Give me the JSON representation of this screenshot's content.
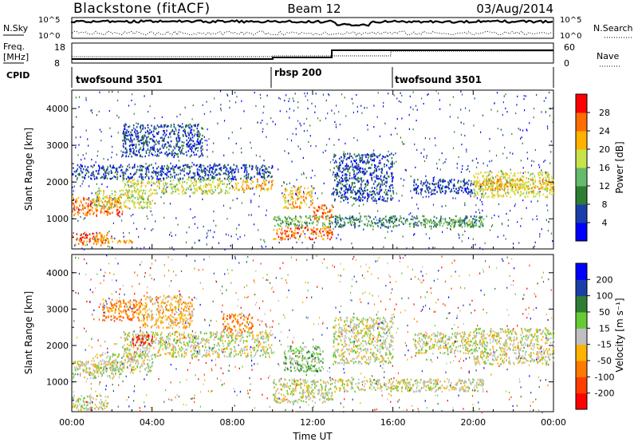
{
  "header": {
    "station": "Blackstone (fitACF)",
    "beam": "Beam 12",
    "date": "03/Aug/2014"
  },
  "top_panels": {
    "nsky_label": "N.Sky",
    "nsky_ticks": [
      "10^5",
      "10^0"
    ],
    "nsearch_label": "N.Search",
    "nsearch_ticks": [
      "10^5",
      "10^0"
    ],
    "freq_label": "Freq.",
    "freq_unit": "[MHz]",
    "freq_ticks": [
      "18",
      "8"
    ],
    "nave_label": "Nave",
    "nave_ticks": [
      "60",
      "0"
    ],
    "cpid_label": "CPID",
    "cpid_segments": [
      {
        "name": "twofsound 3501",
        "start_h": 0,
        "end_h": 10
      },
      {
        "name": "rbsp 200",
        "start_h": 10,
        "end_h": 16
      },
      {
        "name": "twofsound 3501",
        "start_h": 16,
        "end_h": 24
      }
    ]
  },
  "chart_data": [
    {
      "type": "heatmap",
      "panel": "power",
      "ylabel": "Slant Range [km]",
      "colorbar_label": "Power [dB]",
      "colorbar_ticks": [
        "28",
        "24",
        "20",
        "16",
        "12",
        "8",
        "4"
      ],
      "colors": [
        "#0000ff",
        "#1a3fa8",
        "#2e7d32",
        "#66bb6a",
        "#c8e34a",
        "#ffb300",
        "#ff6d00",
        "#ff0000"
      ],
      "x_ticks": [
        "00:00",
        "04:00",
        "08:00",
        "12:00",
        "16:00",
        "20:00",
        "00:00"
      ],
      "y_ticks": [
        "1000",
        "2000",
        "3000",
        "4000"
      ],
      "xlim": [
        0,
        24
      ],
      "ylim": [
        180,
        4500
      ],
      "bands": [
        {
          "t0": 0,
          "t1": 1.8,
          "r0": 300,
          "r1": 650,
          "level": 6
        },
        {
          "t0": 1.0,
          "t1": 3.0,
          "r0": 350,
          "r1": 500,
          "level": 5
        },
        {
          "t0": 0,
          "t1": 2.5,
          "r0": 1100,
          "r1": 1600,
          "level": 6
        },
        {
          "t0": 1.0,
          "t1": 4.0,
          "r0": 1300,
          "r1": 1800,
          "level": 4
        },
        {
          "t0": 2.5,
          "t1": 8.0,
          "r0": 1700,
          "r1": 2100,
          "level": 4
        },
        {
          "t0": 8.0,
          "t1": 10.0,
          "r0": 1800,
          "r1": 2100,
          "level": 5
        },
        {
          "t0": 0,
          "t1": 10.0,
          "r0": 2100,
          "r1": 2500,
          "level": 1
        },
        {
          "t0": 2.5,
          "t1": 6.5,
          "r0": 2700,
          "r1": 3600,
          "level": 1
        },
        {
          "t0": 10.5,
          "t1": 12.0,
          "r0": 1300,
          "r1": 1900,
          "level": 5
        },
        {
          "t0": 12.0,
          "t1": 13.0,
          "r0": 1000,
          "r1": 1400,
          "level": 6
        },
        {
          "t0": 10.0,
          "t1": 13.0,
          "r0": 450,
          "r1": 800,
          "level": 6
        },
        {
          "t0": 10.0,
          "t1": 13.0,
          "r0": 800,
          "r1": 1100,
          "level": 3
        },
        {
          "t0": 13.0,
          "t1": 16.0,
          "r0": 1500,
          "r1": 2800,
          "level": 1
        },
        {
          "t0": 13.0,
          "t1": 20.5,
          "r0": 800,
          "r1": 1100,
          "level": 2
        },
        {
          "t0": 17.5,
          "t1": 20.5,
          "r0": 800,
          "r1": 1000,
          "level": 3
        },
        {
          "t0": 20.0,
          "t1": 24.0,
          "r0": 1600,
          "r1": 2300,
          "level": 4
        },
        {
          "t0": 20.0,
          "t1": 24.0,
          "r0": 1800,
          "r1": 2100,
          "level": 5
        },
        {
          "t0": 17.0,
          "t1": 20.0,
          "r0": 1700,
          "r1": 2100,
          "level": 1
        }
      ]
    },
    {
      "type": "heatmap",
      "panel": "velocity",
      "ylabel": "Slant Range [km]",
      "xlabel": "Time UT",
      "colorbar_label": "Velocity [m s⁻¹]",
      "colorbar_ticks": [
        "200",
        "100",
        "50",
        "15",
        "-15",
        "-50",
        "-100",
        "-200"
      ],
      "colors": [
        "#0000ff",
        "#1a3fa8",
        "#2e7d32",
        "#66cc33",
        "#c0c0c0",
        "#ffb300",
        "#ff7a00",
        "#ff3d00",
        "#ff0000"
      ],
      "x_ticks": [
        "00:00",
        "04:00",
        "08:00",
        "12:00",
        "16:00",
        "20:00",
        "00:00"
      ],
      "y_ticks": [
        "1000",
        "2000",
        "3000",
        "4000"
      ],
      "xlim": [
        0,
        24
      ],
      "ylim": [
        180,
        4500
      ],
      "bands": [
        {
          "t0": 0,
          "t1": 1.8,
          "r0": 250,
          "r1": 650,
          "level": 4
        },
        {
          "t0": 0,
          "t1": 2.5,
          "r0": 1100,
          "r1": 1600,
          "level": 4
        },
        {
          "t0": 1.0,
          "t1": 4.0,
          "r0": 1300,
          "r1": 1800,
          "level": 4
        },
        {
          "t0": 2.5,
          "t1": 10.0,
          "r0": 1700,
          "r1": 2400,
          "level": 4
        },
        {
          "t0": 1.5,
          "t1": 3.5,
          "r0": 2700,
          "r1": 3300,
          "level": 6
        },
        {
          "t0": 3.5,
          "t1": 6.0,
          "r0": 2500,
          "r1": 3400,
          "level": 5
        },
        {
          "t0": 7.5,
          "t1": 9.0,
          "r0": 2400,
          "r1": 2900,
          "level": 6
        },
        {
          "t0": 3.0,
          "t1": 4.0,
          "r0": 2000,
          "r1": 2300,
          "level": 8
        },
        {
          "t0": 10.5,
          "t1": 12.5,
          "r0": 1300,
          "r1": 2000,
          "level": 3
        },
        {
          "t0": 10.0,
          "t1": 13.0,
          "r0": 450,
          "r1": 1100,
          "level": 4
        },
        {
          "t0": 13.0,
          "t1": 16.0,
          "r0": 1500,
          "r1": 2800,
          "level": 4
        },
        {
          "t0": 13.0,
          "t1": 20.5,
          "r0": 750,
          "r1": 1100,
          "level": 4
        },
        {
          "t0": 20.0,
          "t1": 24.0,
          "r0": 1500,
          "r1": 2500,
          "level": 4
        },
        {
          "t0": 17.0,
          "t1": 20.0,
          "r0": 1800,
          "r1": 2400,
          "level": 4
        }
      ]
    }
  ]
}
